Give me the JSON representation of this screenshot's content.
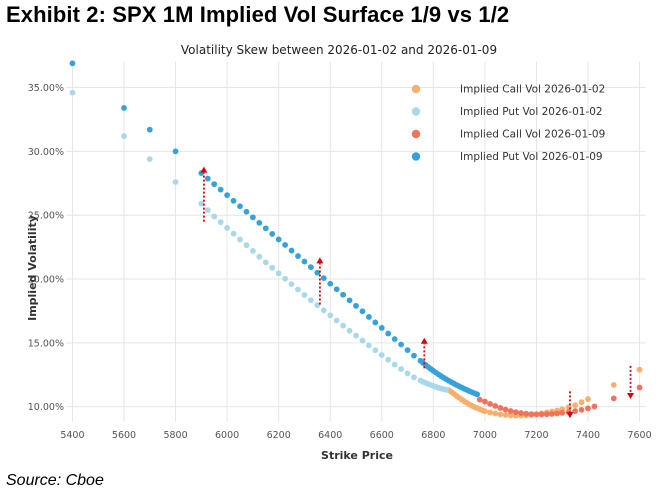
{
  "exhibit": {
    "title": "Exhibit 2: SPX 1M Implied Vol Surface 1/9 vs 1/2",
    "source": "Source: Cboe"
  },
  "chart_data": {
    "type": "scatter",
    "title": "Volatility Skew between 2026-01-02 and 2026-01-09",
    "xlabel": "Strike Price",
    "ylabel": "Implied Volatility",
    "xlim": [
      5375,
      7625
    ],
    "ylim": [
      8.8,
      37.0
    ],
    "x_ticks": [
      5400,
      5600,
      5800,
      6000,
      6200,
      6400,
      6600,
      6800,
      7000,
      7200,
      7400,
      7600
    ],
    "y_ticks": [
      10,
      15,
      20,
      25,
      30,
      35
    ],
    "y_tick_labels": [
      "10.00%",
      "15.00%",
      "20.00%",
      "25.00%",
      "30.00%",
      "35.00%"
    ],
    "grid": true,
    "legend_position": "top-right",
    "colors": {
      "call_0102": "#f5b06e",
      "put_0102": "#a9d8ea",
      "call_0109": "#f1735b",
      "put_0109": "#36a2dc",
      "arrow": "#d9000a"
    },
    "series": [
      {
        "name": "Implied Call Vol 2026-01-02",
        "color_key": "call_0102",
        "points": [
          [
            6860,
            11.3
          ],
          [
            6870,
            11.15
          ],
          [
            6880,
            11.0
          ],
          [
            6890,
            10.85
          ],
          [
            6900,
            10.7
          ],
          [
            6910,
            10.56
          ],
          [
            6920,
            10.42
          ],
          [
            6930,
            10.3
          ],
          [
            6940,
            10.18
          ],
          [
            6950,
            10.07
          ],
          [
            6960,
            9.97
          ],
          [
            6970,
            9.88
          ],
          [
            6980,
            9.8
          ],
          [
            6990,
            9.72
          ],
          [
            7000,
            9.65
          ],
          [
            7020,
            9.55
          ],
          [
            7040,
            9.47
          ],
          [
            7060,
            9.4
          ],
          [
            7080,
            9.35
          ],
          [
            7100,
            9.32
          ],
          [
            7120,
            9.3
          ],
          [
            7140,
            9.3
          ],
          [
            7160,
            9.32
          ],
          [
            7180,
            9.36
          ],
          [
            7200,
            9.42
          ],
          [
            7220,
            9.48
          ],
          [
            7240,
            9.55
          ],
          [
            7260,
            9.62
          ],
          [
            7280,
            9.7
          ],
          [
            7300,
            9.8
          ],
          [
            7325,
            9.95
          ],
          [
            7350,
            10.12
          ],
          [
            7375,
            10.35
          ],
          [
            7400,
            10.6
          ],
          [
            7500,
            11.7
          ],
          [
            7600,
            12.9
          ]
        ]
      },
      {
        "name": "Implied Put Vol 2026-01-02",
        "color_key": "put_0102",
        "points": [
          [
            5400,
            34.6
          ],
          [
            5600,
            31.2
          ],
          [
            5700,
            29.4
          ],
          [
            5800,
            27.6
          ],
          [
            5900,
            25.9
          ],
          [
            5925,
            25.4
          ],
          [
            5950,
            24.9
          ],
          [
            5975,
            24.45
          ],
          [
            6000,
            24.0
          ],
          [
            6025,
            23.55
          ],
          [
            6050,
            23.1
          ],
          [
            6075,
            22.65
          ],
          [
            6100,
            22.2
          ],
          [
            6125,
            21.75
          ],
          [
            6150,
            21.3
          ],
          [
            6175,
            20.88
          ],
          [
            6200,
            20.45
          ],
          [
            6225,
            20.03
          ],
          [
            6250,
            19.6
          ],
          [
            6275,
            19.18
          ],
          [
            6300,
            18.75
          ],
          [
            6325,
            18.35
          ],
          [
            6350,
            17.95
          ],
          [
            6375,
            17.55
          ],
          [
            6400,
            17.15
          ],
          [
            6425,
            16.75
          ],
          [
            6450,
            16.35
          ],
          [
            6475,
            15.95
          ],
          [
            6500,
            15.57
          ],
          [
            6525,
            15.18
          ],
          [
            6550,
            14.8
          ],
          [
            6575,
            14.42
          ],
          [
            6600,
            14.05
          ],
          [
            6625,
            13.68
          ],
          [
            6650,
            13.3
          ],
          [
            6675,
            12.95
          ],
          [
            6700,
            12.6
          ],
          [
            6725,
            12.3
          ],
          [
            6750,
            12.05
          ],
          [
            6760,
            11.95
          ],
          [
            6770,
            11.86
          ],
          [
            6780,
            11.78
          ],
          [
            6790,
            11.7
          ],
          [
            6800,
            11.62
          ],
          [
            6810,
            11.55
          ],
          [
            6820,
            11.48
          ],
          [
            6830,
            11.42
          ],
          [
            6840,
            11.37
          ],
          [
            6850,
            11.32
          ]
        ]
      },
      {
        "name": "Implied Call Vol 2026-01-09",
        "color_key": "call_0109",
        "points": [
          [
            6980,
            10.55
          ],
          [
            7000,
            10.4
          ],
          [
            7020,
            10.22
          ],
          [
            7040,
            10.06
          ],
          [
            7060,
            9.9
          ],
          [
            7080,
            9.77
          ],
          [
            7100,
            9.66
          ],
          [
            7120,
            9.57
          ],
          [
            7140,
            9.5
          ],
          [
            7160,
            9.45
          ],
          [
            7180,
            9.42
          ],
          [
            7200,
            9.4
          ],
          [
            7220,
            9.4
          ],
          [
            7240,
            9.41
          ],
          [
            7260,
            9.43
          ],
          [
            7280,
            9.47
          ],
          [
            7300,
            9.52
          ],
          [
            7325,
            9.58
          ],
          [
            7350,
            9.66
          ],
          [
            7375,
            9.75
          ],
          [
            7400,
            9.87
          ],
          [
            7425,
            10.02
          ],
          [
            7500,
            10.65
          ],
          [
            7600,
            11.5
          ]
        ]
      },
      {
        "name": "Implied Put Vol 2026-01-09",
        "color_key": "put_0109",
        "points": [
          [
            5400,
            36.9
          ],
          [
            5600,
            33.4
          ],
          [
            5700,
            31.7
          ],
          [
            5800,
            30.0
          ],
          [
            5900,
            28.3
          ],
          [
            5925,
            27.87
          ],
          [
            5950,
            27.43
          ],
          [
            5975,
            27.0
          ],
          [
            6000,
            26.57
          ],
          [
            6025,
            26.13
          ],
          [
            6050,
            25.7
          ],
          [
            6075,
            25.27
          ],
          [
            6100,
            24.83
          ],
          [
            6125,
            24.4
          ],
          [
            6150,
            23.97
          ],
          [
            6175,
            23.53
          ],
          [
            6200,
            23.1
          ],
          [
            6225,
            22.67
          ],
          [
            6250,
            22.23
          ],
          [
            6275,
            21.8
          ],
          [
            6300,
            21.37
          ],
          [
            6325,
            20.93
          ],
          [
            6350,
            20.5
          ],
          [
            6375,
            20.07
          ],
          [
            6400,
            19.63
          ],
          [
            6425,
            19.2
          ],
          [
            6450,
            18.77
          ],
          [
            6475,
            18.33
          ],
          [
            6500,
            17.9
          ],
          [
            6525,
            17.47
          ],
          [
            6550,
            17.03
          ],
          [
            6575,
            16.6
          ],
          [
            6600,
            16.17
          ],
          [
            6625,
            15.73
          ],
          [
            6650,
            15.3
          ],
          [
            6675,
            14.87
          ],
          [
            6700,
            14.43
          ],
          [
            6725,
            14.0
          ],
          [
            6750,
            13.6
          ],
          [
            6760,
            13.43
          ],
          [
            6770,
            13.27
          ],
          [
            6780,
            13.11
          ],
          [
            6790,
            12.96
          ],
          [
            6800,
            12.81
          ],
          [
            6810,
            12.67
          ],
          [
            6820,
            12.53
          ],
          [
            6830,
            12.4
          ],
          [
            6840,
            12.27
          ],
          [
            6850,
            12.15
          ],
          [
            6860,
            12.03
          ],
          [
            6870,
            11.92
          ],
          [
            6880,
            11.81
          ],
          [
            6890,
            11.7
          ],
          [
            6900,
            11.6
          ],
          [
            6910,
            11.5
          ],
          [
            6920,
            11.4
          ],
          [
            6930,
            11.31
          ],
          [
            6940,
            11.22
          ],
          [
            6950,
            11.13
          ],
          [
            6960,
            11.05
          ],
          [
            6970,
            10.97
          ]
        ]
      }
    ],
    "arrows": [
      {
        "x": 5910,
        "from": 24.5,
        "to": 28.8
      },
      {
        "x": 6360,
        "from": 18.0,
        "to": 21.7
      },
      {
        "x": 6765,
        "from": 13.0,
        "to": 15.4
      },
      {
        "x": 7330,
        "from": 11.2,
        "to": 9.1
      },
      {
        "x": 7565,
        "from": 13.2,
        "to": 10.6
      }
    ]
  }
}
